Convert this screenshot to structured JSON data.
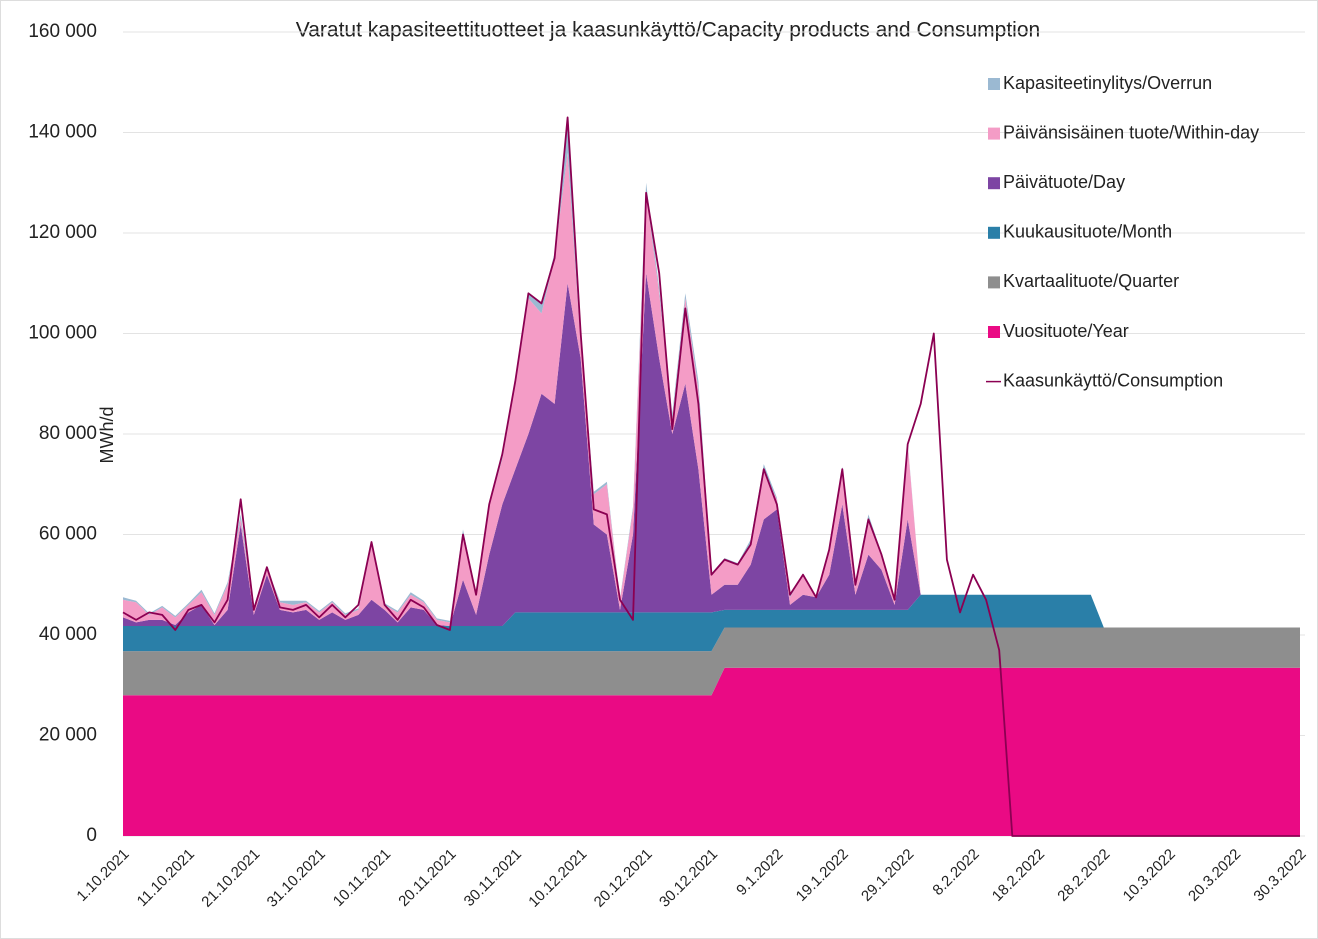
{
  "chart_data": {
    "type": "stacked_area_line",
    "title": "Varatut kapasiteettituotteet ja kaasunkäyttö/Capacity products and Consumption",
    "y_label": "MWh/d",
    "ylim": [
      0,
      160000
    ],
    "yticks": [
      0,
      {
        "value": 20000,
        "label": "20 000"
      },
      {
        "value": 40000,
        "label": "40 000"
      },
      {
        "value": 60000,
        "label": "60 000"
      },
      {
        "value": 80000,
        "label": "80 000"
      },
      {
        "value": 100000,
        "label": "100 000"
      },
      {
        "value": 120000,
        "label": "120 000"
      },
      {
        "value": 140000,
        "label": "140 000"
      },
      {
        "value": 160000,
        "label": "160 000"
      }
    ],
    "grid": true,
    "legend": "upper right",
    "categories": [
      "1.10.2021",
      null,
      null,
      null,
      null,
      "11.10.2021",
      null,
      null,
      null,
      null,
      "21.10.2021",
      null,
      null,
      null,
      null,
      "31.10.2021",
      null,
      null,
      null,
      null,
      "10.11.2021",
      null,
      null,
      null,
      null,
      "20.11.2021",
      null,
      null,
      null,
      null,
      "30.11.2021",
      null,
      null,
      null,
      null,
      "10.12.2021",
      null,
      null,
      null,
      null,
      "20.12.2021",
      null,
      null,
      null,
      null,
      "30.12.2021",
      null,
      null,
      null,
      null,
      "9.1.2022",
      null,
      null,
      null,
      null,
      "19.1.2022",
      null,
      null,
      null,
      null,
      "29.1.2022",
      null,
      null,
      null,
      null,
      "8.2.2022",
      null,
      null,
      null,
      null,
      "18.2.2022",
      null,
      null,
      null,
      null,
      "28.2.2022",
      null,
      null,
      null,
      null,
      "10.3.2022",
      null,
      null,
      null,
      null,
      "20.3.2022",
      null,
      null,
      null,
      null,
      "30.3.2022"
    ],
    "series": [
      {
        "name": "Vuosituote/Year",
        "color": "#ea0a84",
        "kind": "area",
        "values": [
          28000,
          28000,
          28000,
          28000,
          28000,
          28000,
          28000,
          28000,
          28000,
          28000,
          28000,
          28000,
          28000,
          28000,
          28000,
          28000,
          28000,
          28000,
          28000,
          28000,
          28000,
          28000,
          28000,
          28000,
          28000,
          28000,
          28000,
          28000,
          28000,
          28000,
          28000,
          28000,
          28000,
          28000,
          28000,
          28000,
          28000,
          28000,
          28000,
          28000,
          28000,
          28000,
          28000,
          28000,
          28000,
          28000,
          33500,
          33500,
          33500,
          33500,
          33500,
          33500,
          33500,
          33500,
          33500,
          33500,
          33500,
          33500,
          33500,
          33500,
          33500,
          33500,
          33500,
          33500,
          33500,
          33500,
          33500,
          33500,
          33500,
          33500,
          33500,
          33500,
          33500,
          33500,
          33500,
          33500,
          33500,
          33500,
          33500,
          33500,
          33500,
          33500,
          33500,
          33500,
          33500,
          33500,
          33500,
          33500,
          33500,
          33500,
          33500
        ]
      },
      {
        "name": "Kvartaalituote/Quarter",
        "color": "#8e8e8e",
        "kind": "area",
        "values": [
          8800,
          8800,
          8800,
          8800,
          8800,
          8800,
          8800,
          8800,
          8800,
          8800,
          8800,
          8800,
          8800,
          8800,
          8800,
          8800,
          8800,
          8800,
          8800,
          8800,
          8800,
          8800,
          8800,
          8800,
          8800,
          8800,
          8800,
          8800,
          8800,
          8800,
          8800,
          8800,
          8800,
          8800,
          8800,
          8800,
          8800,
          8800,
          8800,
          8800,
          8800,
          8800,
          8800,
          8800,
          8800,
          8800,
          8000,
          8000,
          8000,
          8000,
          8000,
          8000,
          8000,
          8000,
          8000,
          8000,
          8000,
          8000,
          8000,
          8000,
          8000,
          8000,
          8000,
          8000,
          8000,
          8000,
          8000,
          8000,
          8000,
          8000,
          8000,
          8000,
          8000,
          8000,
          8000,
          8000,
          8000,
          8000,
          8000,
          8000,
          8000,
          8000,
          8000,
          8000,
          8000,
          8000,
          8000,
          8000,
          8000,
          8000,
          8000
        ]
      },
      {
        "name": "Kuukausituote/Month",
        "color": "#2a7fa8",
        "kind": "area",
        "values": [
          5000,
          5000,
          5000,
          5000,
          5000,
          5000,
          5000,
          5000,
          5000,
          5000,
          5000,
          5000,
          5000,
          5000,
          5000,
          5000,
          5000,
          5000,
          5000,
          5000,
          5000,
          5000,
          5000,
          5000,
          5000,
          5000,
          5000,
          5000,
          5000,
          5000,
          7700,
          7700,
          7700,
          7700,
          7700,
          7700,
          7700,
          7700,
          7700,
          7700,
          7700,
          7700,
          7700,
          7700,
          7700,
          7700,
          3500,
          3500,
          3500,
          3500,
          3500,
          3500,
          3500,
          3500,
          3500,
          3500,
          3500,
          3500,
          3500,
          3500,
          3500,
          6500,
          6500,
          6500,
          6500,
          6500,
          6500,
          6500,
          6500,
          6500,
          6500,
          6500,
          6500,
          6500,
          6500,
          0,
          0,
          0,
          0,
          0,
          0,
          0,
          0,
          0,
          0,
          0,
          0,
          0,
          0,
          0,
          0
        ]
      },
      {
        "name": "Päivätuote/Day",
        "color": "#7d45a3",
        "kind": "area",
        "values": [
          1700,
          700,
          1200,
          1200,
          200,
          2700,
          4200,
          200,
          3200,
          20200,
          2200,
          10200,
          3200,
          2700,
          3200,
          1200,
          2700,
          1200,
          2200,
          5200,
          3200,
          700,
          3700,
          3200,
          200,
          0,
          9200,
          2200,
          14200,
          24200,
          28500,
          35500,
          43500,
          41500,
          65500,
          50500,
          17500,
          15500,
          500,
          15500,
          67500,
          50500,
          35500,
          45500,
          28500,
          3500,
          5000,
          5000,
          9000,
          18000,
          20000,
          1000,
          3000,
          2500,
          7000,
          21000,
          3000,
          11000,
          8000,
          1000,
          18000,
          0,
          0,
          0,
          0,
          0,
          0,
          0,
          0,
          0,
          0,
          0,
          0,
          0,
          0,
          0,
          0,
          0,
          0,
          0,
          0,
          0,
          0,
          0,
          0,
          0,
          0,
          0,
          0,
          0,
          0
        ]
      },
      {
        "name": "Päivänsisäinen tuote/Within-day",
        "color": "#f49cc6",
        "kind": "area",
        "values": [
          3500,
          4000,
          1000,
          2500,
          1500,
          1500,
          2500,
          2000,
          5000,
          1000,
          1500,
          1000,
          1500,
          1500,
          1500,
          1500,
          2000,
          1000,
          1000,
          11000,
          1000,
          2000,
          2500,
          1500,
          1000,
          700,
          9000,
          4000,
          10000,
          9000,
          17000,
          27000,
          16000,
          29000,
          26000,
          3000,
          6000,
          10000,
          2000,
          5000,
          16000,
          13000,
          3000,
          17000,
          16000,
          4000,
          5000,
          4000,
          4000,
          9500,
          2000,
          1500,
          4000,
          0,
          5000,
          7000,
          2000,
          7000,
          3000,
          1000,
          15000,
          0,
          0,
          0,
          0,
          0,
          0,
          0,
          0,
          0,
          0,
          0,
          0,
          0,
          0,
          0,
          0,
          0,
          0,
          0,
          0,
          0,
          0,
          0,
          0,
          0,
          0,
          0,
          0,
          0,
          0
        ]
      },
      {
        "name": "Kapasiteetinylitys/Overrun",
        "color": "#9bb9d2",
        "kind": "area",
        "values": [
          500,
          300,
          300,
          300,
          300,
          300,
          500,
          300,
          500,
          1000,
          300,
          300,
          300,
          800,
          300,
          300,
          300,
          300,
          300,
          300,
          300,
          300,
          500,
          300,
          300,
          300,
          1000,
          300,
          500,
          500,
          1000,
          1000,
          2000,
          1000,
          6000,
          1000,
          500,
          500,
          300,
          500,
          2000,
          1000,
          1000,
          1000,
          1500,
          300,
          300,
          300,
          1000,
          1500,
          300,
          300,
          300,
          300,
          300,
          500,
          300,
          1000,
          300,
          300,
          300,
          0,
          0,
          0,
          0,
          0,
          0,
          0,
          0,
          0,
          0,
          0,
          0,
          0,
          0,
          0,
          0,
          0,
          0,
          0,
          0,
          0,
          0,
          0,
          0,
          0,
          0,
          0,
          0,
          0,
          0
        ]
      },
      {
        "name": "Kaasunkäyttö/Consumption",
        "color": "#8b0052",
        "kind": "line",
        "values": [
          44500,
          43000,
          44500,
          44000,
          41000,
          45000,
          46000,
          42500,
          47000,
          67000,
          45000,
          53500,
          45500,
          45000,
          46000,
          43500,
          46000,
          43500,
          46000,
          58500,
          46000,
          43000,
          47000,
          45500,
          42000,
          41000,
          60000,
          48000,
          66000,
          76000,
          90500,
          108000,
          106000,
          115000,
          143000,
          100000,
          65000,
          64000,
          47000,
          43000,
          128000,
          112000,
          81000,
          105000,
          86000,
          52000,
          55000,
          54000,
          58000,
          73000,
          66000,
          48000,
          52000,
          47500,
          57000,
          73000,
          50000,
          63000,
          56000,
          47000,
          78000,
          86000,
          100000,
          55000,
          44500,
          52000,
          47000,
          37000,
          0,
          0,
          0,
          0,
          0,
          0,
          0,
          0,
          0,
          0,
          0,
          0,
          0,
          0,
          0,
          0,
          0,
          0,
          0,
          0,
          0,
          0,
          0
        ]
      }
    ]
  }
}
